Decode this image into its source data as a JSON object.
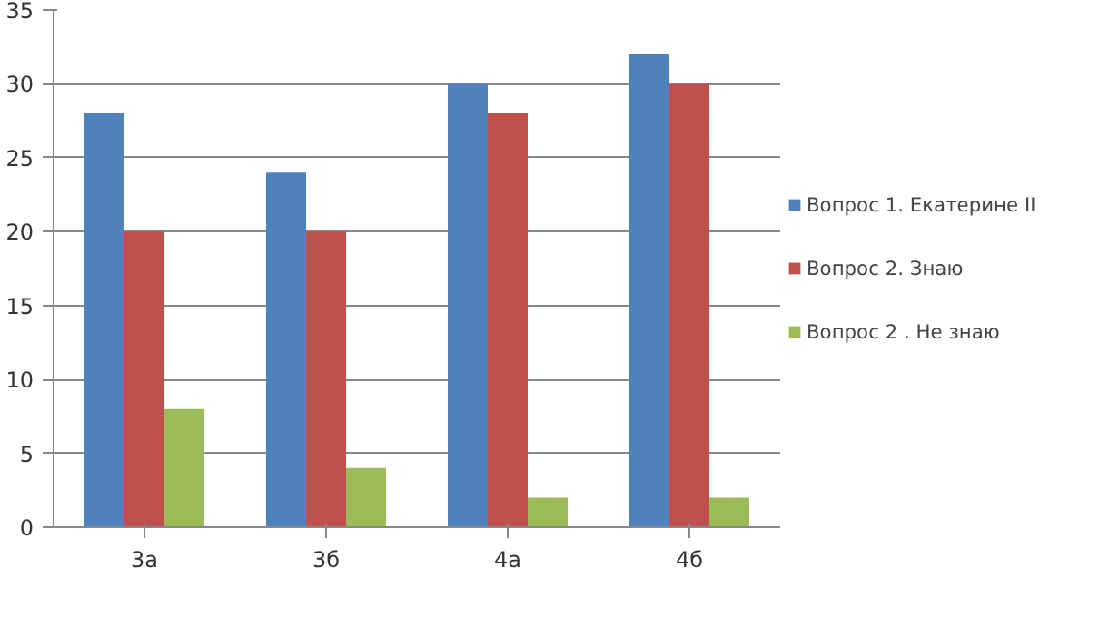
{
  "chart_data": {
    "type": "bar",
    "categories": [
      "3а",
      "3б",
      "4а",
      "4б"
    ],
    "series": [
      {
        "name": "Вопрос 1. Екатерине II",
        "color": "#4f81bd",
        "values": [
          28,
          24,
          30,
          32
        ]
      },
      {
        "name": "Вопрос 2. Знаю",
        "color": "#c0504d",
        "values": [
          20,
          20,
          28,
          30
        ]
      },
      {
        "name": "Вопрос 2 . Не знаю",
        "color": "#9bbb59",
        "values": [
          8,
          4,
          2,
          2
        ]
      }
    ],
    "ylim": [
      0,
      35
    ],
    "yticks": [
      0,
      5,
      10,
      15,
      20,
      25,
      30,
      35
    ],
    "grid": "y",
    "legend": "right"
  }
}
